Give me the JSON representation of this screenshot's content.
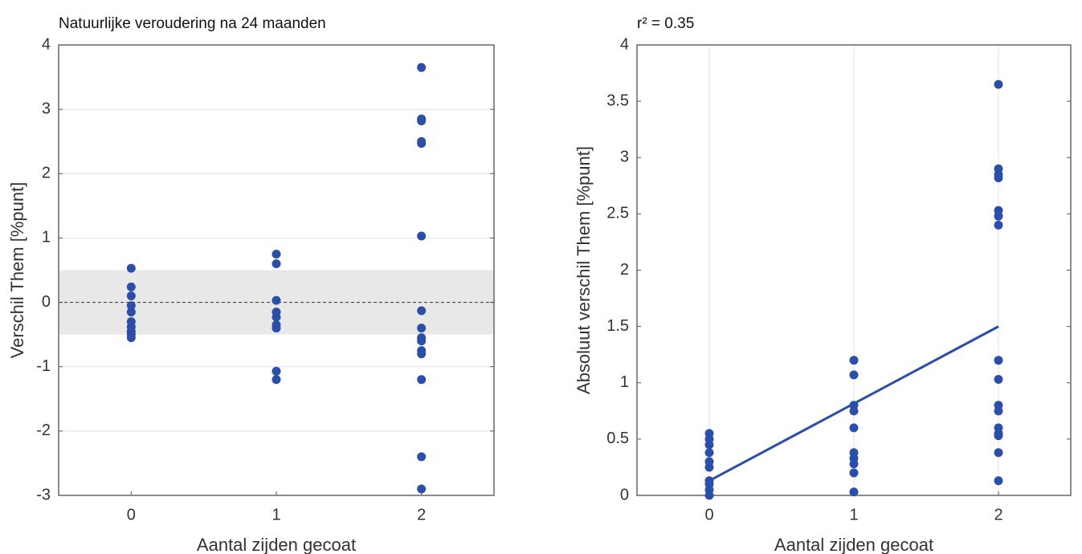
{
  "chart_data": [
    {
      "type": "scatter",
      "title": "Natuurlijke veroudering na 24 maanden",
      "xlabel": "Aantal zijden gecoat",
      "ylabel": "Verschil Them [%punt]",
      "xlim": [
        -0.5,
        2.5
      ],
      "xticks": [
        0,
        1,
        2
      ],
      "ylim": [
        -3,
        4
      ],
      "yticks": [
        -3,
        -2,
        -1,
        0,
        1,
        2,
        3,
        4
      ],
      "grid": "y",
      "color": "#2b4fa8",
      "band": [
        -0.5,
        0.5
      ],
      "reference_line": 0,
      "x": [
        0,
        0,
        0,
        0,
        0,
        0,
        0,
        0,
        0,
        0,
        1,
        1,
        1,
        1,
        1,
        1,
        1,
        1,
        1,
        2,
        2,
        2,
        2,
        2,
        2,
        2,
        2,
        2,
        2,
        2,
        2,
        2,
        2,
        2
      ],
      "values": [
        0.53,
        0.24,
        0.1,
        -0.05,
        -0.15,
        -0.3,
        -0.38,
        -0.45,
        -0.5,
        -0.55,
        0.75,
        0.6,
        0.03,
        -0.15,
        -0.23,
        -0.35,
        -0.4,
        -1.07,
        -1.2,
        3.65,
        2.85,
        2.82,
        2.5,
        2.47,
        1.03,
        -0.13,
        -0.4,
        -0.55,
        -0.6,
        -0.75,
        -0.8,
        -1.2,
        -2.4,
        -2.9
      ]
    },
    {
      "type": "scatter",
      "title": "r² = 0.35",
      "xlabel": "Aantal zijden gecoat",
      "ylabel": "Absoluut verschil Them [%punt]",
      "xlim": [
        -0.5,
        2.5
      ],
      "xticks": [
        0,
        1,
        2
      ],
      "ylim": [
        0,
        4
      ],
      "yticks": [
        0,
        0.5,
        1,
        1.5,
        2,
        2.5,
        3,
        3.5,
        4
      ],
      "grid": "x",
      "color": "#2b4fa8",
      "fit": {
        "x": [
          0,
          2
        ],
        "y": [
          0.13,
          1.5
        ]
      },
      "x": [
        0,
        0,
        0,
        0,
        0,
        0,
        0,
        0,
        0,
        0,
        1,
        1,
        1,
        1,
        1,
        1,
        1,
        1,
        1,
        1,
        2,
        2,
        2,
        2,
        2,
        2,
        2,
        2,
        2,
        2,
        2,
        2,
        2,
        2,
        2,
        2
      ],
      "values": [
        0.55,
        0.5,
        0.45,
        0.38,
        0.3,
        0.25,
        0.13,
        0.1,
        0.05,
        0.0,
        1.2,
        1.07,
        0.8,
        0.75,
        0.6,
        0.38,
        0.33,
        0.28,
        0.2,
        0.03,
        3.65,
        2.9,
        2.85,
        2.82,
        2.53,
        2.48,
        2.4,
        1.2,
        1.03,
        0.8,
        0.75,
        0.6,
        0.55,
        0.53,
        0.38,
        0.13
      ]
    }
  ]
}
